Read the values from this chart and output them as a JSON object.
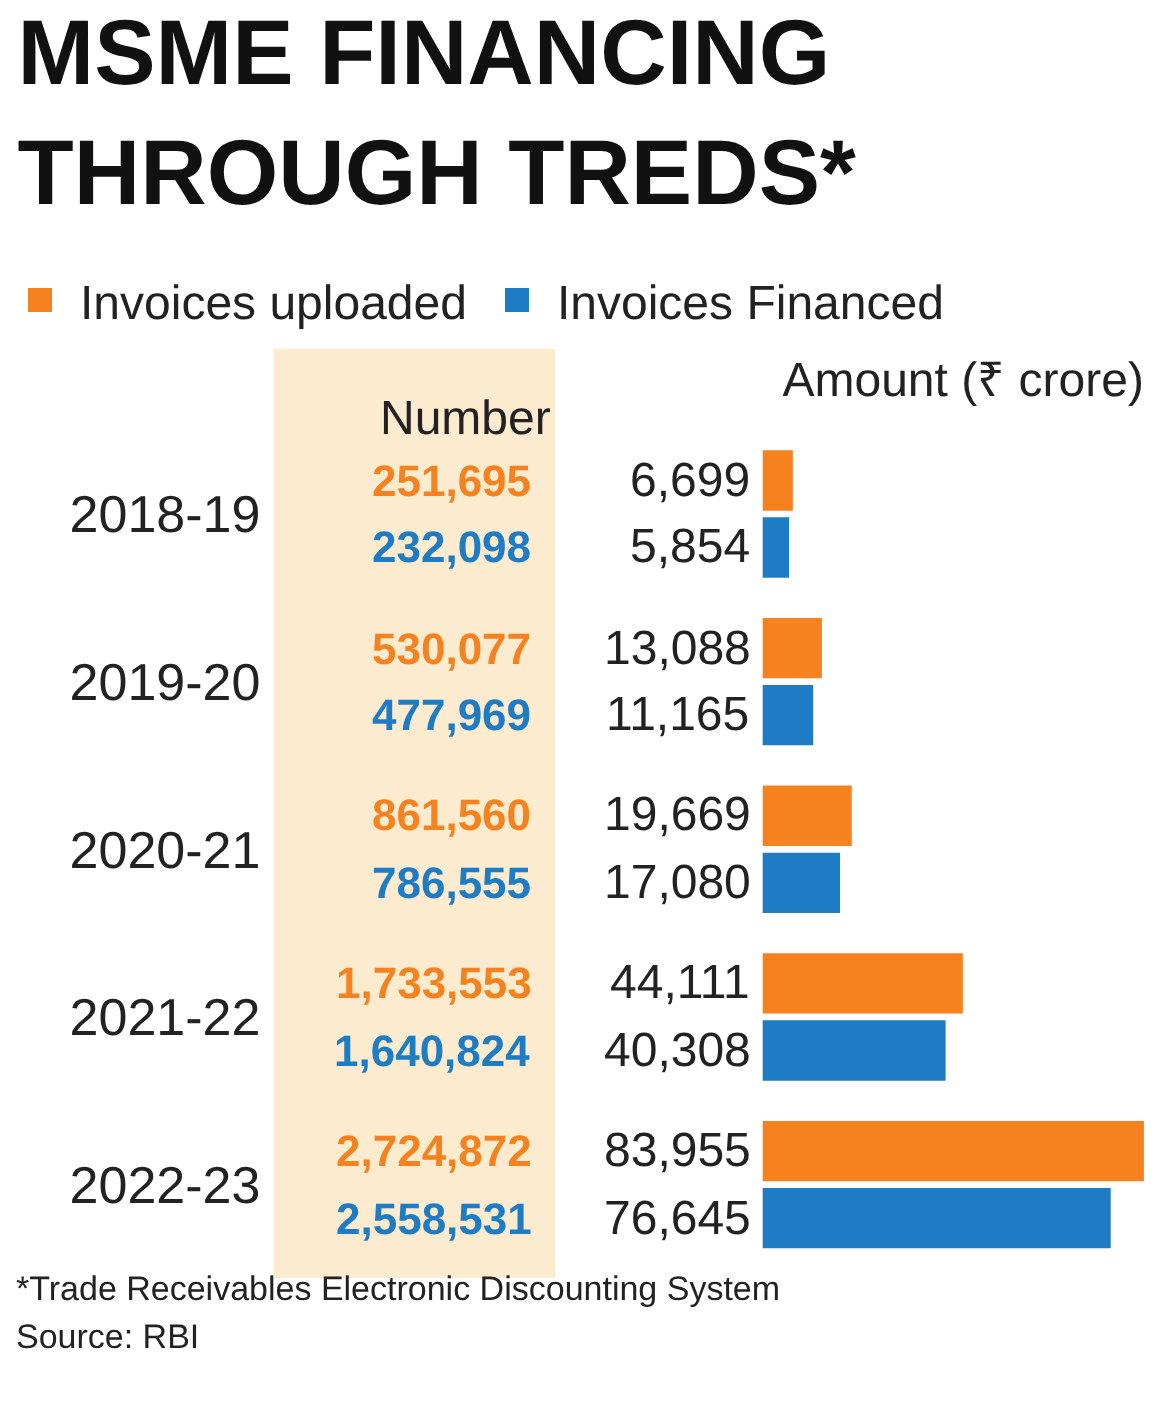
{
  "chart_data": {
    "type": "bar",
    "orientation": "horizontal",
    "title": "MSME FINANCING\nTHROUGH TREDS*",
    "xlabel": "Amount (₹ crore)",
    "categories": [
      "2018-19",
      "2019-20",
      "2020-21",
      "2021-22",
      "2022-23"
    ],
    "series": [
      {
        "name": "Invoices uploaded",
        "color": "#f5821f",
        "values": [
          6699,
          13088,
          19669,
          44111,
          83955
        ],
        "value_labels": [
          "6,699",
          "13,088",
          "19,669",
          "44,111",
          "83,955"
        ]
      },
      {
        "name": "Invoices Financed",
        "color": "#1d7cc4",
        "values": [
          5854,
          11165,
          17080,
          40308,
          76645
        ],
        "value_labels": [
          "5,854",
          "11,165",
          "17,080",
          "40,308",
          "76,645"
        ]
      }
    ],
    "tick_labels": "y",
    "legend": "top",
    "annotations": [
      "Number",
      "251,695",
      "232,098",
      "530,077",
      "477,969",
      "861,560",
      "786,555",
      "1,733,553",
      "1,640,824",
      "2,724,872",
      "2,558,531",
      "*Trade Receivables Electronic Discounting System",
      "Source: RBI"
    ]
  }
}
